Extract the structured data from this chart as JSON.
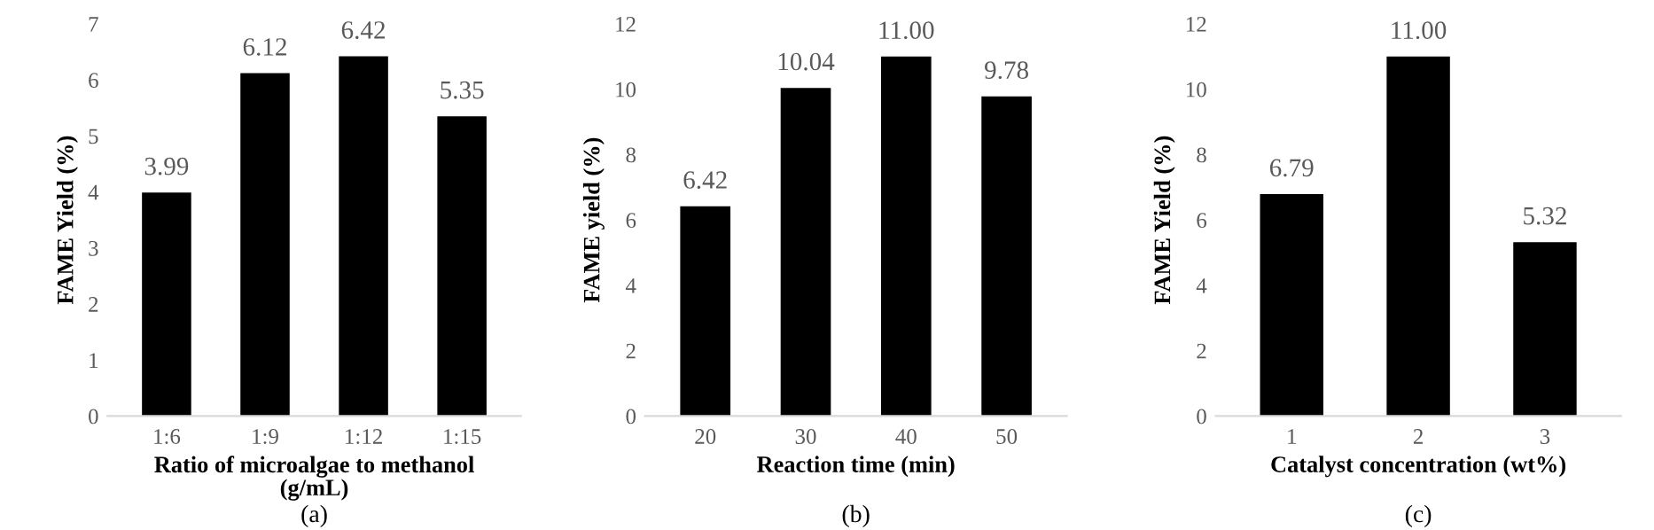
{
  "chart_data": [
    {
      "type": "bar",
      "categories": [
        "1:6",
        "1:9",
        "1:12",
        "1:15"
      ],
      "values": [
        3.99,
        6.12,
        6.42,
        5.35
      ],
      "color": "#000000",
      "value_labels": [
        "3.99",
        "6.12",
        "6.42",
        "5.35"
      ],
      "ylim": [
        0,
        7
      ],
      "yticks": [
        0,
        1,
        2,
        3,
        4,
        5,
        6,
        7
      ],
      "xlabel": "Ratio of microalgae to methanol\n(g/mL)",
      "ylabel": "FAME Yield (%)",
      "annotations": [
        "(a)"
      ],
      "grid": false
    },
    {
      "type": "bar",
      "categories": [
        "20",
        "30",
        "40",
        "50"
      ],
      "values": [
        6.42,
        10.04,
        11.0,
        9.78
      ],
      "color": "#000000",
      "value_labels": [
        "6.42",
        "10.04",
        "11.00",
        "9.78"
      ],
      "ylim": [
        0,
        12
      ],
      "yticks": [
        0,
        2,
        4,
        6,
        8,
        10,
        12
      ],
      "xlabel": "Reaction time (min)",
      "ylabel": "FAME yield (%)",
      "annotations": [
        "(b)"
      ],
      "grid": false
    },
    {
      "type": "bar",
      "categories": [
        "1",
        "2",
        "3"
      ],
      "values": [
        6.79,
        11.0,
        5.32
      ],
      "color": "#000000",
      "value_labels": [
        "6.79",
        "11.00",
        "5.32"
      ],
      "ylim": [
        0,
        12
      ],
      "yticks": [
        0,
        2,
        4,
        6,
        8,
        10,
        12
      ],
      "xlabel": "Catalyst concentration (wt%)",
      "ylabel": "FAME Yield (%)",
      "annotations": [
        "(c)"
      ],
      "grid": false
    }
  ]
}
